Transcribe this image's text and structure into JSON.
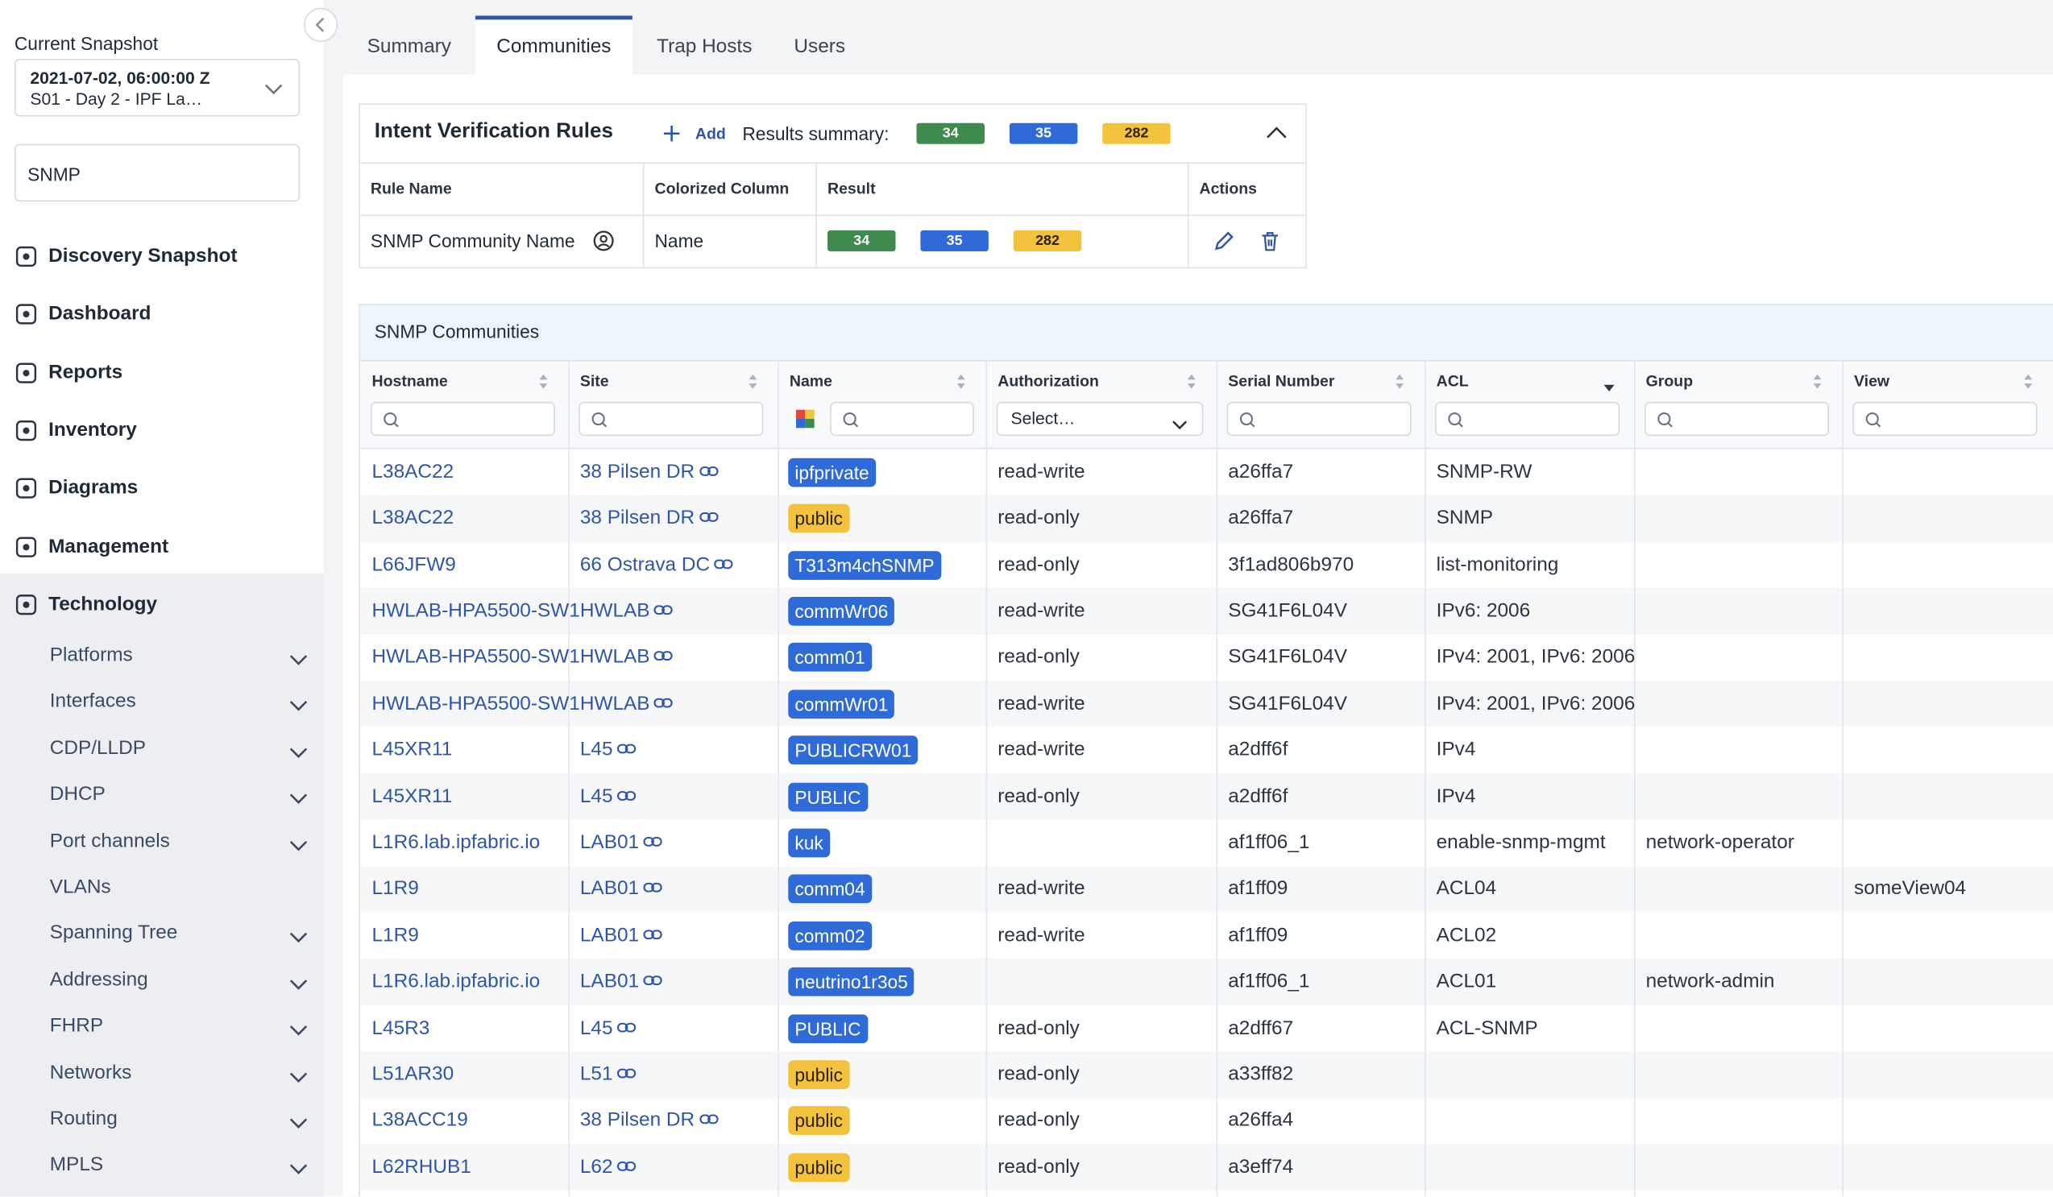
{
  "sidebar": {
    "snapshot_label": "Current Snapshot",
    "snapshot_date": "2021-07-02, 06:00:00 Z",
    "snapshot_name": "S01 - Day 2 - IPF La…",
    "search": "SNMP",
    "nav": [
      "Discovery Snapshot",
      "Dashboard",
      "Reports",
      "Inventory",
      "Diagrams",
      "Management",
      "Technology"
    ],
    "subnav": [
      {
        "label": "Platforms",
        "expandable": true
      },
      {
        "label": "Interfaces",
        "expandable": true
      },
      {
        "label": "CDP/LLDP",
        "expandable": true
      },
      {
        "label": "DHCP",
        "expandable": true
      },
      {
        "label": "Port channels",
        "expandable": true
      },
      {
        "label": "VLANs",
        "expandable": false
      },
      {
        "label": "Spanning Tree",
        "expandable": true
      },
      {
        "label": "Addressing",
        "expandable": true
      },
      {
        "label": "FHRP",
        "expandable": true
      },
      {
        "label": "Networks",
        "expandable": true
      },
      {
        "label": "Routing",
        "expandable": true
      },
      {
        "label": "MPLS",
        "expandable": true
      }
    ]
  },
  "tabs": {
    "items": [
      "Summary",
      "Communities",
      "Trap Hosts",
      "Users"
    ],
    "active": 1
  },
  "intent": {
    "title": "Intent Verification Rules",
    "add": "Add",
    "results_label": "Results summary:",
    "summary": [
      {
        "value": 34,
        "color": "green"
      },
      {
        "value": 35,
        "color": "blue"
      },
      {
        "value": 282,
        "color": "yellow"
      }
    ],
    "columns": [
      "Rule Name",
      "Colorized Column",
      "Result",
      "Actions"
    ],
    "rule": {
      "name": "SNMP Community Name",
      "column": "Name",
      "results": [
        {
          "value": 34,
          "color": "green"
        },
        {
          "value": 35,
          "color": "blue"
        },
        {
          "value": 282,
          "color": "yellow"
        }
      ]
    }
  },
  "table": {
    "title": "SNMP Communities",
    "columns": [
      "Hostname",
      "Site",
      "Name",
      "Authorization",
      "Serial Number",
      "ACL",
      "Group",
      "View"
    ],
    "authorization_placeholder": "Select…",
    "rows": [
      {
        "cells": [
          "L38AC22",
          "38 Pilsen DR",
          "ipfprivate",
          "read-write",
          "a26ffa7",
          "SNMP-RW",
          null,
          null
        ],
        "badge": "blue"
      },
      {
        "cells": [
          "L38AC22",
          "38 Pilsen DR",
          "public",
          "read-only",
          "a26ffa7",
          "SNMP",
          null,
          null
        ],
        "badge": "yellow"
      },
      {
        "cells": [
          "L66JFW9",
          "66 Ostrava DC",
          "T313m4chSNMP",
          "read-only",
          "3f1ad806b970",
          "list-monitoring",
          null,
          null
        ],
        "badge": "blue"
      },
      {
        "cells": [
          "HWLAB-HPA5500-SW1",
          "HWLAB",
          "commWr06",
          "read-write",
          "SG41F6L04V",
          "IPv6: 2006",
          null,
          null
        ],
        "badge": "blue"
      },
      {
        "cells": [
          "HWLAB-HPA5500-SW1",
          "HWLAB",
          "comm01",
          "read-only",
          "SG41F6L04V",
          "IPv4: 2001, IPv6: 2006",
          null,
          null
        ],
        "badge": "blue"
      },
      {
        "cells": [
          "HWLAB-HPA5500-SW1",
          "HWLAB",
          "commWr01",
          "read-write",
          "SG41F6L04V",
          "IPv4: 2001, IPv6: 2006",
          null,
          null
        ],
        "badge": "blue"
      },
      {
        "cells": [
          "L45XR11",
          "L45",
          "PUBLICRW01",
          "read-write",
          "a2dff6f",
          "IPv4",
          null,
          null
        ],
        "badge": "blue"
      },
      {
        "cells": [
          "L45XR11",
          "L45",
          "PUBLIC",
          "read-only",
          "a2dff6f",
          "IPv4",
          null,
          null
        ],
        "badge": "blue"
      },
      {
        "cells": [
          "L1R6.lab.ipfabric.io",
          "LAB01",
          "kuk",
          null,
          "af1ff06_1",
          "enable-snmp-mgmt",
          "network-operator",
          null
        ],
        "badge": "blue"
      },
      {
        "cells": [
          "L1R9",
          "LAB01",
          "comm04",
          "read-write",
          "af1ff09",
          "ACL04",
          null,
          "someView04"
        ],
        "badge": "blue"
      },
      {
        "cells": [
          "L1R9",
          "LAB01",
          "comm02",
          "read-write",
          "af1ff09",
          "ACL02",
          null,
          null
        ],
        "badge": "blue"
      },
      {
        "cells": [
          "L1R6.lab.ipfabric.io",
          "LAB01",
          "neutrino1r3o5",
          null,
          "af1ff06_1",
          "ACL01",
          "network-admin",
          null
        ],
        "badge": "blue"
      },
      {
        "cells": [
          "L45R3",
          "L45",
          "PUBLIC",
          "read-only",
          "a2dff67",
          "ACL-SNMP",
          null,
          null
        ],
        "badge": "blue"
      },
      {
        "cells": [
          "L51AR30",
          "L51",
          "public",
          "read-only",
          "a33ff82",
          null,
          null,
          null
        ],
        "badge": "yellow"
      },
      {
        "cells": [
          "L38ACC19",
          "38 Pilsen DR",
          "public",
          "read-only",
          "a26ffa4",
          null,
          null,
          null
        ],
        "badge": "yellow"
      },
      {
        "cells": [
          "L62RHUB1",
          "L62",
          "public",
          "read-only",
          "a3eff74",
          null,
          null,
          null
        ],
        "badge": "yellow"
      }
    ]
  }
}
